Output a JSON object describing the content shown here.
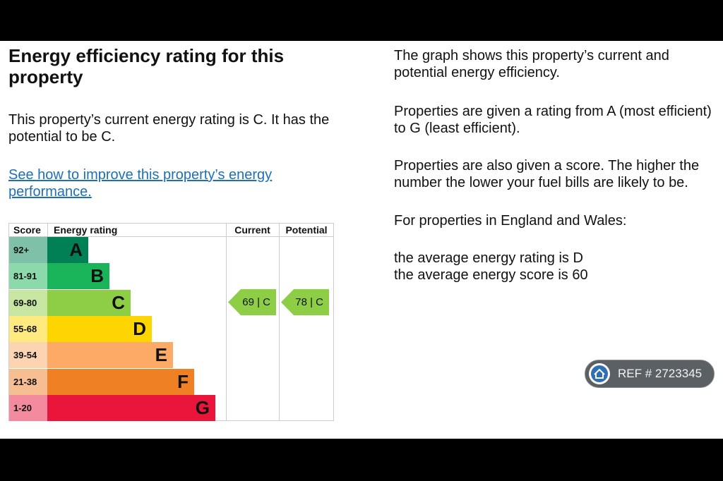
{
  "left": {
    "title": "Energy efficiency rating for this property",
    "summary": "This property’s current energy rating is C. It has the potential to be C.",
    "link": "See how to improve this property’s energy performance."
  },
  "table": {
    "headers": [
      "Score",
      "Energy rating",
      "Current",
      "Potential"
    ],
    "rows": [
      {
        "score": "92+",
        "letter": "A"
      },
      {
        "score": "81-91",
        "letter": "B"
      },
      {
        "score": "69-80",
        "letter": "C"
      },
      {
        "score": "55-68",
        "letter": "D"
      },
      {
        "score": "39-54",
        "letter": "E"
      },
      {
        "score": "21-38",
        "letter": "F"
      },
      {
        "score": "1-20",
        "letter": "G"
      }
    ],
    "current": "69 | C",
    "potential": "78 | C"
  },
  "right": {
    "paragraphs": [
      "The graph shows this property’s current and potential energy efficiency.",
      "Properties are given a rating from A (most efficient) to G (least efficient).",
      "Properties are also given a score. The higher the number the lower your fuel bills are likely to be.",
      "For properties in England and Wales:"
    ],
    "averages": [
      "the average energy rating is D",
      "the average energy score is 60"
    ]
  },
  "badge": "REF # 2723345"
}
